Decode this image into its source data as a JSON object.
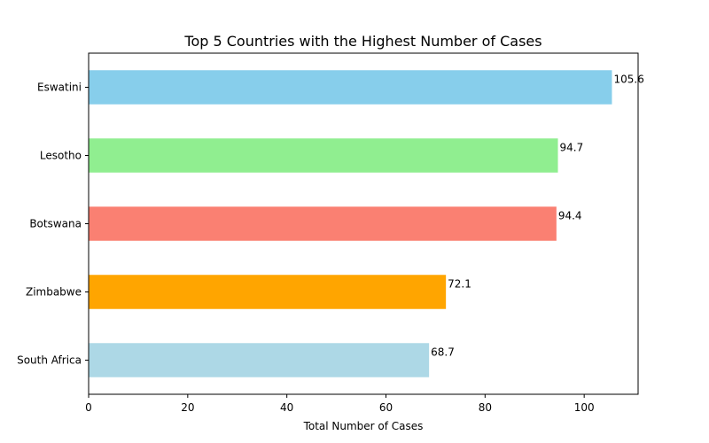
{
  "chart_data": {
    "type": "bar",
    "orientation": "horizontal",
    "title": "Top 5 Countries with the Highest Number of Cases",
    "xlabel": "Total Number of Cases",
    "ylabel": "",
    "categories": [
      "Eswatini",
      "Lesotho",
      "Botswana",
      "Zimbabwe",
      "South Africa"
    ],
    "values": [
      105.6,
      94.7,
      94.4,
      72.1,
      68.7
    ],
    "value_labels": [
      "105.6",
      "94.7",
      "94.4",
      "72.1",
      "68.7"
    ],
    "colors": [
      "#87ceeb",
      "#90ee90",
      "#fa8072",
      "#ffa500",
      "#add8e6"
    ],
    "xlim": [
      0,
      110.88
    ],
    "xticks": [
      0,
      20,
      40,
      60,
      80,
      100
    ],
    "xtick_labels": [
      "0",
      "20",
      "40",
      "60",
      "80",
      "100"
    ],
    "grid": false,
    "legend": "none"
  }
}
